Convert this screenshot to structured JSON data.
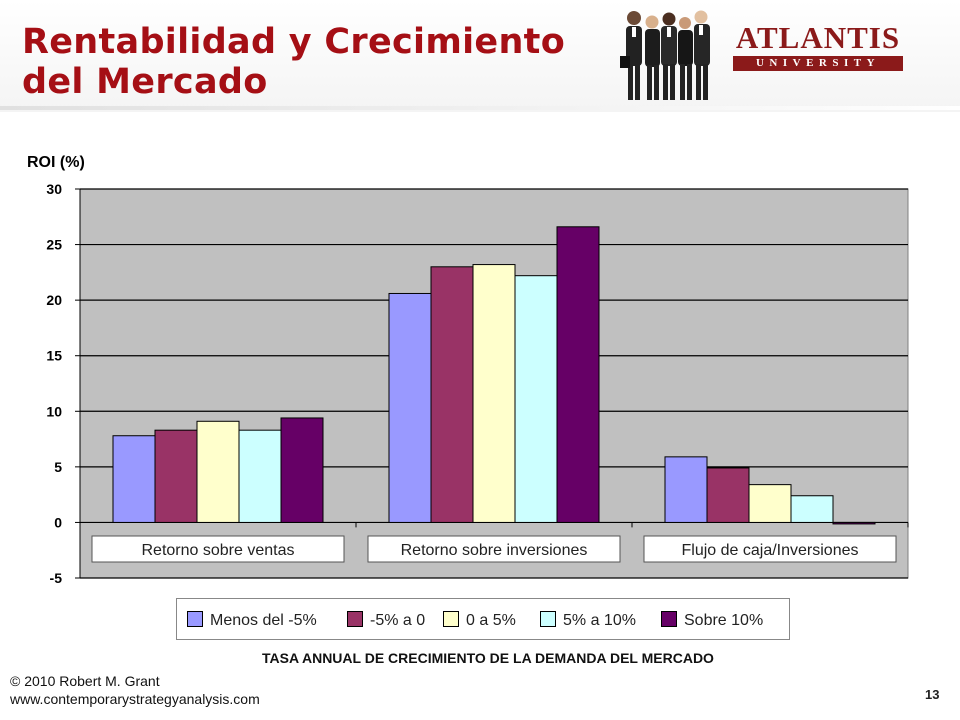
{
  "slide": {
    "title": "Rentabilidad y Crecimiento del Mercado",
    "logo_main": "ATLANTIS",
    "logo_sub": "UNIVERSITY",
    "copyright_line1": "© 2010 Robert M. Grant",
    "copyright_line2": "www.contemporarystrategyanalysis.com",
    "page_number": "13"
  },
  "chart_data": {
    "type": "bar",
    "title": "",
    "ylabel": "ROI (%)",
    "xlabel": "TASA ANNUAL DE CRECIMIENTO DE LA DEMANDA DEL MERCADO",
    "ylim": [
      -5,
      30
    ],
    "yticks": [
      30,
      25,
      20,
      15,
      10,
      5,
      0,
      -5
    ],
    "grid": true,
    "legend_position": "bottom",
    "categories": [
      "Retorno sobre ventas",
      "Retorno sobre inversiones",
      "Flujo de caja/Inversiones"
    ],
    "series": [
      {
        "name": "Menos del -5%",
        "color": "#9999ff",
        "values": [
          7.8,
          20.6,
          5.9
        ]
      },
      {
        "name": "-5%  a 0",
        "color": "#993366",
        "values": [
          8.3,
          23.0,
          4.9
        ]
      },
      {
        "name": "0 a 5%",
        "color": "#ffffcc",
        "values": [
          9.1,
          23.2,
          3.4
        ]
      },
      {
        "name": "5%  a 10%",
        "color": "#ccffff",
        "values": [
          8.3,
          22.2,
          2.4
        ]
      },
      {
        "name": "Sobre 10%",
        "color": "#660066",
        "values": [
          9.4,
          26.6,
          -0.1
        ]
      }
    ]
  }
}
